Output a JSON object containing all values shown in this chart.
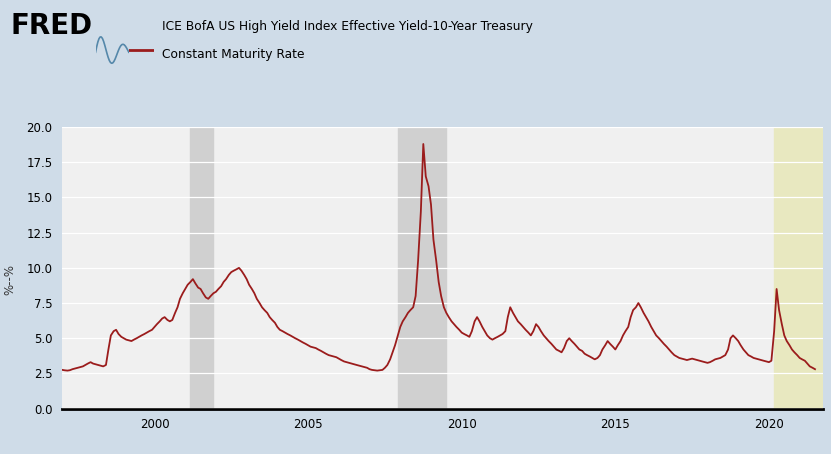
{
  "title_line1": "ICE BofA US High Yield Index Effective Yield-10-Year Treasury",
  "title_line2": "Constant Maturity Rate",
  "ylabel": "%--%",
  "background_color": "#cfdce8",
  "plot_background": "#f0f0f0",
  "line_color": "#9b1c1c",
  "line_width": 1.3,
  "ylim": [
    0.0,
    20.0
  ],
  "yticks": [
    0.0,
    2.5,
    5.0,
    7.5,
    10.0,
    12.5,
    15.0,
    17.5,
    20.0
  ],
  "ytick_labels": [
    "0.0",
    "2.5",
    "5.0",
    "7.5",
    "10.0",
    "12.5",
    "15.0",
    "17.5",
    "20.0"
  ],
  "xlim_start": 1997.0,
  "xlim_end": 2021.75,
  "xticks": [
    2000,
    2005,
    2010,
    2015,
    2020
  ],
  "recession_bands": [
    {
      "start": 2001.17,
      "end": 2001.92
    },
    {
      "start": 2007.92,
      "end": 2009.5
    },
    {
      "start": 2020.17,
      "end": 2021.75
    }
  ],
  "recession_colors": [
    "#d0d0d0",
    "#d0d0d0",
    "#e8e8c0"
  ],
  "data": [
    [
      1997.0,
      2.75
    ],
    [
      1997.08,
      2.72
    ],
    [
      1997.17,
      2.7
    ],
    [
      1997.25,
      2.73
    ],
    [
      1997.33,
      2.8
    ],
    [
      1997.42,
      2.85
    ],
    [
      1997.5,
      2.9
    ],
    [
      1997.58,
      2.95
    ],
    [
      1997.67,
      3.0
    ],
    [
      1997.75,
      3.1
    ],
    [
      1997.83,
      3.2
    ],
    [
      1997.92,
      3.3
    ],
    [
      1998.0,
      3.2
    ],
    [
      1998.08,
      3.15
    ],
    [
      1998.17,
      3.1
    ],
    [
      1998.25,
      3.05
    ],
    [
      1998.33,
      3.0
    ],
    [
      1998.42,
      3.1
    ],
    [
      1998.5,
      4.2
    ],
    [
      1998.58,
      5.2
    ],
    [
      1998.67,
      5.5
    ],
    [
      1998.75,
      5.6
    ],
    [
      1998.83,
      5.3
    ],
    [
      1998.92,
      5.1
    ],
    [
      1999.0,
      5.0
    ],
    [
      1999.08,
      4.9
    ],
    [
      1999.17,
      4.85
    ],
    [
      1999.25,
      4.8
    ],
    [
      1999.33,
      4.9
    ],
    [
      1999.42,
      5.0
    ],
    [
      1999.5,
      5.1
    ],
    [
      1999.58,
      5.2
    ],
    [
      1999.67,
      5.3
    ],
    [
      1999.75,
      5.4
    ],
    [
      1999.83,
      5.5
    ],
    [
      1999.92,
      5.6
    ],
    [
      2000.0,
      5.8
    ],
    [
      2000.08,
      6.0
    ],
    [
      2000.17,
      6.2
    ],
    [
      2000.25,
      6.4
    ],
    [
      2000.33,
      6.5
    ],
    [
      2000.42,
      6.3
    ],
    [
      2000.5,
      6.2
    ],
    [
      2000.58,
      6.3
    ],
    [
      2000.67,
      6.8
    ],
    [
      2000.75,
      7.2
    ],
    [
      2000.83,
      7.8
    ],
    [
      2000.92,
      8.2
    ],
    [
      2001.0,
      8.5
    ],
    [
      2001.08,
      8.8
    ],
    [
      2001.17,
      9.0
    ],
    [
      2001.25,
      9.2
    ],
    [
      2001.33,
      8.9
    ],
    [
      2001.42,
      8.6
    ],
    [
      2001.5,
      8.5
    ],
    [
      2001.58,
      8.2
    ],
    [
      2001.67,
      7.9
    ],
    [
      2001.75,
      7.8
    ],
    [
      2001.83,
      8.0
    ],
    [
      2001.92,
      8.2
    ],
    [
      2002.0,
      8.3
    ],
    [
      2002.08,
      8.5
    ],
    [
      2002.17,
      8.7
    ],
    [
      2002.25,
      9.0
    ],
    [
      2002.33,
      9.2
    ],
    [
      2002.42,
      9.5
    ],
    [
      2002.5,
      9.7
    ],
    [
      2002.58,
      9.8
    ],
    [
      2002.67,
      9.9
    ],
    [
      2002.75,
      10.0
    ],
    [
      2002.83,
      9.8
    ],
    [
      2002.92,
      9.5
    ],
    [
      2003.0,
      9.2
    ],
    [
      2003.08,
      8.8
    ],
    [
      2003.17,
      8.5
    ],
    [
      2003.25,
      8.2
    ],
    [
      2003.33,
      7.8
    ],
    [
      2003.42,
      7.5
    ],
    [
      2003.5,
      7.2
    ],
    [
      2003.58,
      7.0
    ],
    [
      2003.67,
      6.8
    ],
    [
      2003.75,
      6.5
    ],
    [
      2003.83,
      6.3
    ],
    [
      2003.92,
      6.1
    ],
    [
      2004.0,
      5.8
    ],
    [
      2004.08,
      5.6
    ],
    [
      2004.17,
      5.5
    ],
    [
      2004.25,
      5.4
    ],
    [
      2004.33,
      5.3
    ],
    [
      2004.42,
      5.2
    ],
    [
      2004.5,
      5.1
    ],
    [
      2004.58,
      5.0
    ],
    [
      2004.67,
      4.9
    ],
    [
      2004.75,
      4.8
    ],
    [
      2004.83,
      4.7
    ],
    [
      2004.92,
      4.6
    ],
    [
      2005.0,
      4.5
    ],
    [
      2005.08,
      4.4
    ],
    [
      2005.17,
      4.35
    ],
    [
      2005.25,
      4.3
    ],
    [
      2005.33,
      4.2
    ],
    [
      2005.42,
      4.1
    ],
    [
      2005.5,
      4.0
    ],
    [
      2005.58,
      3.9
    ],
    [
      2005.67,
      3.8
    ],
    [
      2005.75,
      3.75
    ],
    [
      2005.83,
      3.7
    ],
    [
      2005.92,
      3.65
    ],
    [
      2006.0,
      3.55
    ],
    [
      2006.08,
      3.45
    ],
    [
      2006.17,
      3.35
    ],
    [
      2006.25,
      3.3
    ],
    [
      2006.33,
      3.25
    ],
    [
      2006.42,
      3.2
    ],
    [
      2006.5,
      3.15
    ],
    [
      2006.58,
      3.1
    ],
    [
      2006.67,
      3.05
    ],
    [
      2006.75,
      3.0
    ],
    [
      2006.83,
      2.95
    ],
    [
      2006.92,
      2.9
    ],
    [
      2007.0,
      2.8
    ],
    [
      2007.08,
      2.75
    ],
    [
      2007.17,
      2.72
    ],
    [
      2007.25,
      2.7
    ],
    [
      2007.33,
      2.72
    ],
    [
      2007.42,
      2.75
    ],
    [
      2007.5,
      2.9
    ],
    [
      2007.58,
      3.1
    ],
    [
      2007.67,
      3.5
    ],
    [
      2007.75,
      4.0
    ],
    [
      2007.83,
      4.5
    ],
    [
      2007.92,
      5.2
    ],
    [
      2008.0,
      5.8
    ],
    [
      2008.08,
      6.2
    ],
    [
      2008.17,
      6.5
    ],
    [
      2008.25,
      6.8
    ],
    [
      2008.33,
      7.0
    ],
    [
      2008.42,
      7.2
    ],
    [
      2008.5,
      8.0
    ],
    [
      2008.58,
      10.5
    ],
    [
      2008.67,
      14.0
    ],
    [
      2008.75,
      18.8
    ],
    [
      2008.83,
      16.5
    ],
    [
      2008.92,
      15.8
    ],
    [
      2009.0,
      14.5
    ],
    [
      2009.08,
      12.0
    ],
    [
      2009.17,
      10.5
    ],
    [
      2009.25,
      9.0
    ],
    [
      2009.33,
      8.0
    ],
    [
      2009.42,
      7.2
    ],
    [
      2009.5,
      6.8
    ],
    [
      2009.58,
      6.5
    ],
    [
      2009.67,
      6.2
    ],
    [
      2009.75,
      6.0
    ],
    [
      2009.83,
      5.8
    ],
    [
      2009.92,
      5.6
    ],
    [
      2010.0,
      5.4
    ],
    [
      2010.08,
      5.3
    ],
    [
      2010.17,
      5.2
    ],
    [
      2010.25,
      5.1
    ],
    [
      2010.33,
      5.5
    ],
    [
      2010.42,
      6.2
    ],
    [
      2010.5,
      6.5
    ],
    [
      2010.58,
      6.2
    ],
    [
      2010.67,
      5.8
    ],
    [
      2010.75,
      5.5
    ],
    [
      2010.83,
      5.2
    ],
    [
      2010.92,
      5.0
    ],
    [
      2011.0,
      4.9
    ],
    [
      2011.08,
      5.0
    ],
    [
      2011.17,
      5.1
    ],
    [
      2011.25,
      5.2
    ],
    [
      2011.33,
      5.3
    ],
    [
      2011.42,
      5.5
    ],
    [
      2011.5,
      6.5
    ],
    [
      2011.58,
      7.2
    ],
    [
      2011.67,
      6.8
    ],
    [
      2011.75,
      6.5
    ],
    [
      2011.83,
      6.2
    ],
    [
      2011.92,
      6.0
    ],
    [
      2012.0,
      5.8
    ],
    [
      2012.08,
      5.6
    ],
    [
      2012.17,
      5.4
    ],
    [
      2012.25,
      5.2
    ],
    [
      2012.33,
      5.5
    ],
    [
      2012.42,
      6.0
    ],
    [
      2012.5,
      5.8
    ],
    [
      2012.58,
      5.5
    ],
    [
      2012.67,
      5.2
    ],
    [
      2012.75,
      5.0
    ],
    [
      2012.83,
      4.8
    ],
    [
      2012.92,
      4.6
    ],
    [
      2013.0,
      4.4
    ],
    [
      2013.08,
      4.2
    ],
    [
      2013.17,
      4.1
    ],
    [
      2013.25,
      4.0
    ],
    [
      2013.33,
      4.3
    ],
    [
      2013.42,
      4.8
    ],
    [
      2013.5,
      5.0
    ],
    [
      2013.58,
      4.8
    ],
    [
      2013.67,
      4.6
    ],
    [
      2013.75,
      4.4
    ],
    [
      2013.83,
      4.2
    ],
    [
      2013.92,
      4.1
    ],
    [
      2014.0,
      3.9
    ],
    [
      2014.08,
      3.8
    ],
    [
      2014.17,
      3.7
    ],
    [
      2014.25,
      3.6
    ],
    [
      2014.33,
      3.5
    ],
    [
      2014.42,
      3.6
    ],
    [
      2014.5,
      3.8
    ],
    [
      2014.58,
      4.2
    ],
    [
      2014.67,
      4.5
    ],
    [
      2014.75,
      4.8
    ],
    [
      2014.83,
      4.6
    ],
    [
      2014.92,
      4.4
    ],
    [
      2015.0,
      4.2
    ],
    [
      2015.08,
      4.5
    ],
    [
      2015.17,
      4.8
    ],
    [
      2015.25,
      5.2
    ],
    [
      2015.33,
      5.5
    ],
    [
      2015.42,
      5.8
    ],
    [
      2015.5,
      6.5
    ],
    [
      2015.58,
      7.0
    ],
    [
      2015.67,
      7.2
    ],
    [
      2015.75,
      7.5
    ],
    [
      2015.83,
      7.2
    ],
    [
      2015.92,
      6.8
    ],
    [
      2016.0,
      6.5
    ],
    [
      2016.08,
      6.2
    ],
    [
      2016.17,
      5.8
    ],
    [
      2016.25,
      5.5
    ],
    [
      2016.33,
      5.2
    ],
    [
      2016.42,
      5.0
    ],
    [
      2016.5,
      4.8
    ],
    [
      2016.58,
      4.6
    ],
    [
      2016.67,
      4.4
    ],
    [
      2016.75,
      4.2
    ],
    [
      2016.83,
      4.0
    ],
    [
      2016.92,
      3.8
    ],
    [
      2017.0,
      3.7
    ],
    [
      2017.08,
      3.6
    ],
    [
      2017.17,
      3.55
    ],
    [
      2017.25,
      3.5
    ],
    [
      2017.33,
      3.45
    ],
    [
      2017.42,
      3.5
    ],
    [
      2017.5,
      3.55
    ],
    [
      2017.58,
      3.5
    ],
    [
      2017.67,
      3.45
    ],
    [
      2017.75,
      3.4
    ],
    [
      2017.83,
      3.35
    ],
    [
      2017.92,
      3.3
    ],
    [
      2018.0,
      3.25
    ],
    [
      2018.08,
      3.3
    ],
    [
      2018.17,
      3.4
    ],
    [
      2018.25,
      3.5
    ],
    [
      2018.33,
      3.55
    ],
    [
      2018.42,
      3.6
    ],
    [
      2018.5,
      3.7
    ],
    [
      2018.58,
      3.8
    ],
    [
      2018.67,
      4.2
    ],
    [
      2018.75,
      5.0
    ],
    [
      2018.83,
      5.2
    ],
    [
      2018.92,
      5.0
    ],
    [
      2019.0,
      4.8
    ],
    [
      2019.08,
      4.5
    ],
    [
      2019.17,
      4.2
    ],
    [
      2019.25,
      4.0
    ],
    [
      2019.33,
      3.8
    ],
    [
      2019.42,
      3.7
    ],
    [
      2019.5,
      3.6
    ],
    [
      2019.58,
      3.55
    ],
    [
      2019.67,
      3.5
    ],
    [
      2019.75,
      3.45
    ],
    [
      2019.83,
      3.4
    ],
    [
      2019.92,
      3.35
    ],
    [
      2020.0,
      3.3
    ],
    [
      2020.08,
      3.4
    ],
    [
      2020.17,
      5.5
    ],
    [
      2020.25,
      8.5
    ],
    [
      2020.33,
      7.0
    ],
    [
      2020.42,
      6.0
    ],
    [
      2020.5,
      5.2
    ],
    [
      2020.58,
      4.8
    ],
    [
      2020.67,
      4.5
    ],
    [
      2020.75,
      4.2
    ],
    [
      2020.83,
      4.0
    ],
    [
      2020.92,
      3.8
    ],
    [
      2021.0,
      3.6
    ],
    [
      2021.08,
      3.5
    ],
    [
      2021.17,
      3.4
    ],
    [
      2021.25,
      3.2
    ],
    [
      2021.33,
      3.0
    ],
    [
      2021.42,
      2.9
    ],
    [
      2021.5,
      2.8
    ]
  ]
}
